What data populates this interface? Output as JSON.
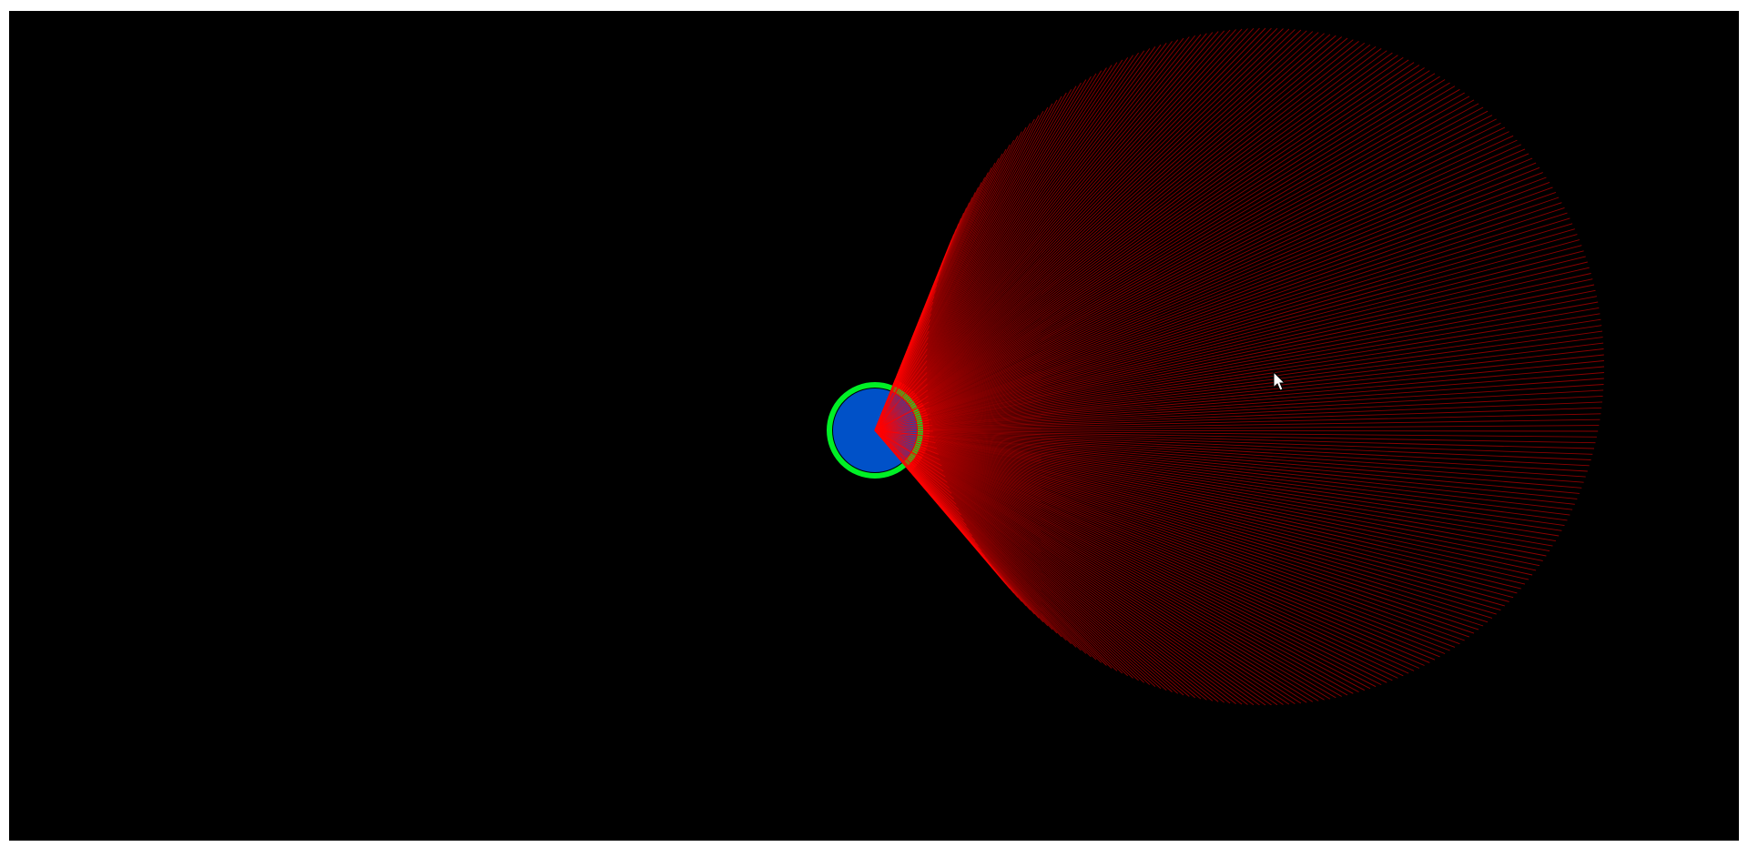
{
  "colors": {
    "page_background": "#ffffff",
    "canvas_background": "#000000",
    "ray_color": "#ff0000",
    "player_fill": "#0051c8",
    "player_ring": "#00f026",
    "cursor_fill": "#ffffff",
    "cursor_stroke": "#000000"
  },
  "scene": {
    "player": {
      "name": "player-circle"
    },
    "vision_cone": {
      "name": "ray-fan",
      "ray_count": 360
    },
    "cursor": {
      "name": "mouse-cursor-icon"
    }
  }
}
